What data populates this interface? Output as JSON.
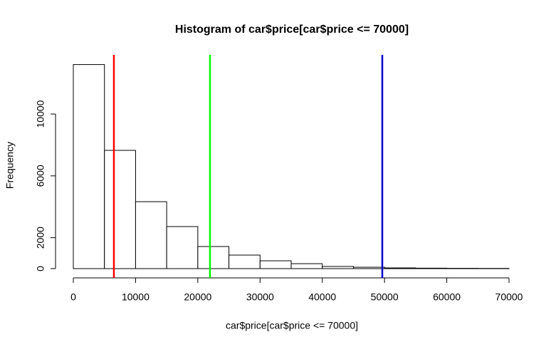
{
  "chart_data": {
    "type": "histogram",
    "title": "Histogram of car$price[car$price <= 70000]",
    "x_label": "car$price[car$price <= 70000]",
    "y_label": "Frequency",
    "bins": [
      0,
      5000,
      10000,
      15000,
      20000,
      25000,
      30000,
      35000,
      40000,
      45000,
      50000,
      55000,
      60000,
      65000,
      70000
    ],
    "values": [
      13200,
      7650,
      4330,
      2720,
      1430,
      875,
      507,
      320,
      140,
      90,
      45,
      30,
      20,
      15
    ],
    "color": "#ffffff",
    "xlim": [
      0,
      70000
    ],
    "ylim": [
      0,
      13200
    ],
    "xticks": [
      0,
      10000,
      20000,
      30000,
      40000,
      50000,
      60000,
      70000
    ],
    "yticks": [
      0,
      2000,
      6000,
      10000
    ],
    "vlines": [
      {
        "value": 6520,
        "color": "#ff0000"
      },
      {
        "value": 21960,
        "color": "#00ff00"
      },
      {
        "value": 49640,
        "color": "#0000cc"
      }
    ]
  }
}
